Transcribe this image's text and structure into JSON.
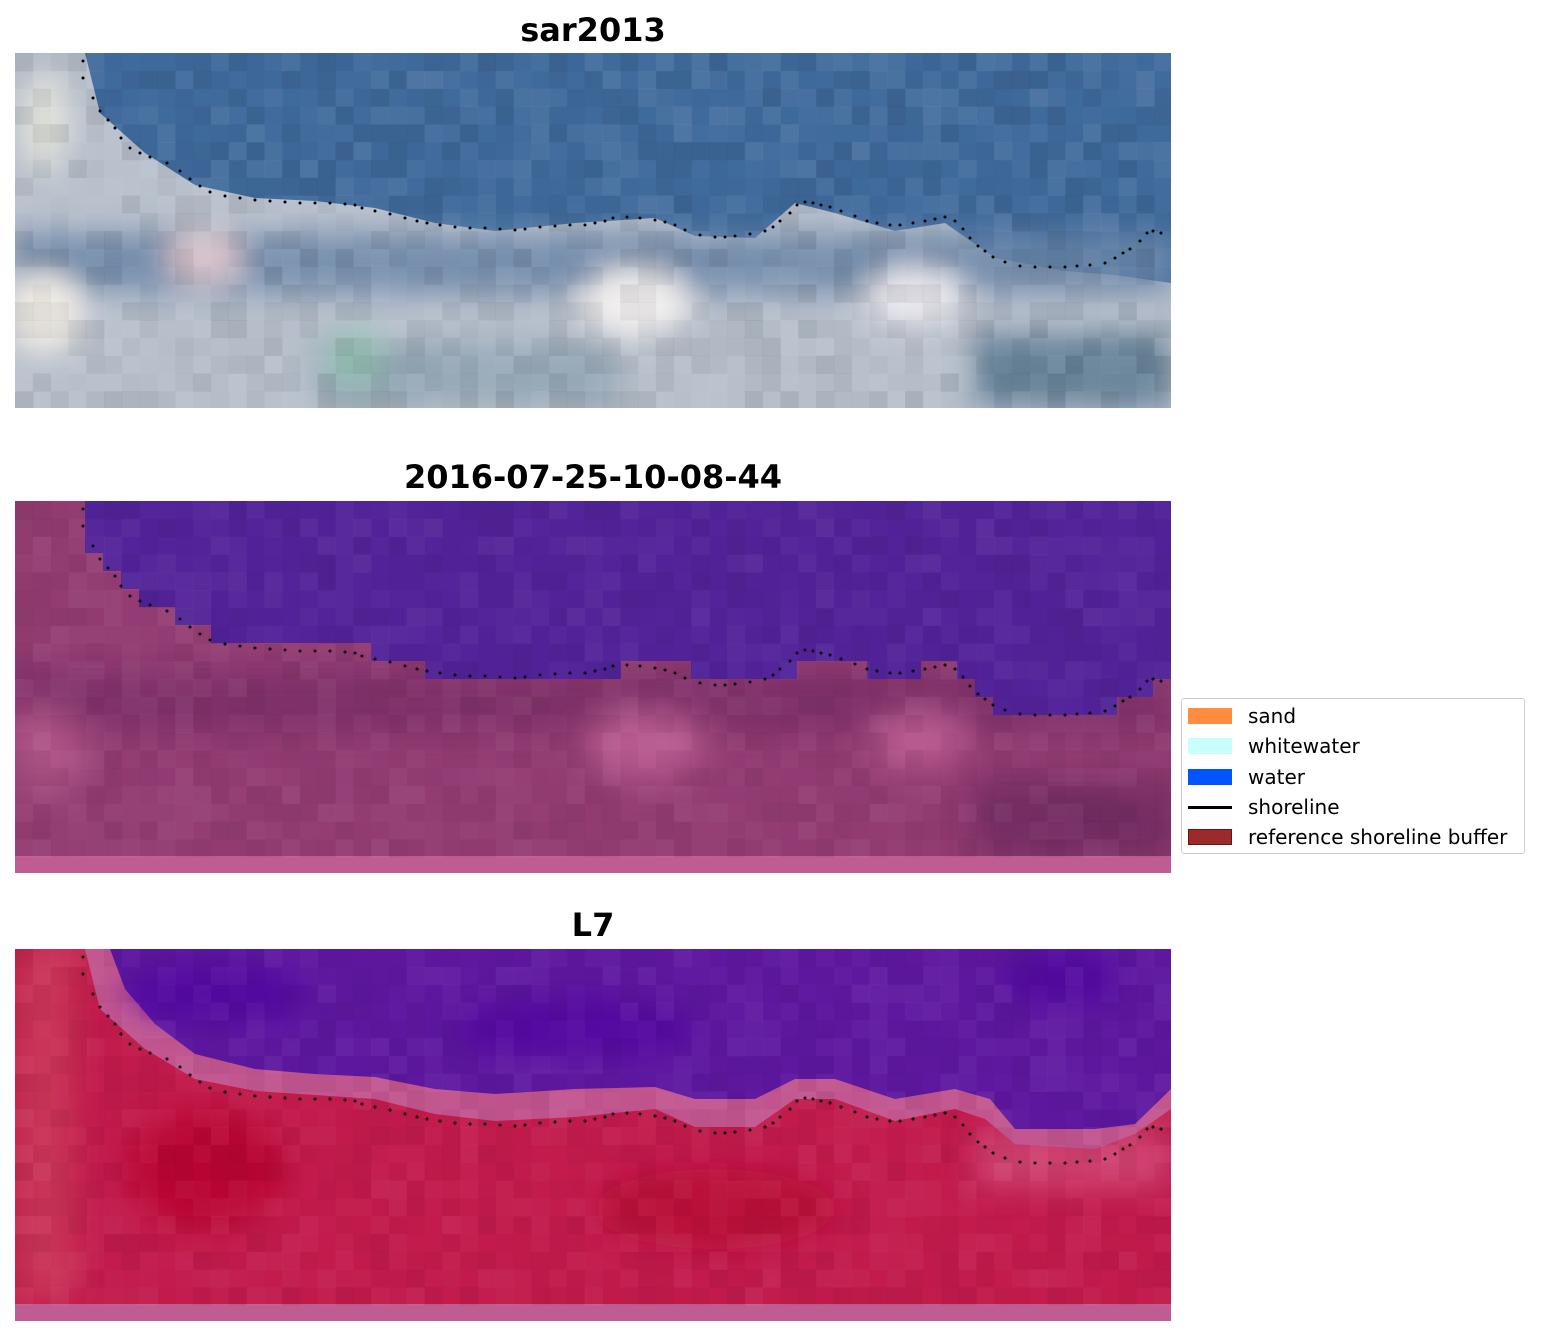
{
  "panels": [
    {
      "title": "sar2013"
    },
    {
      "title": "2016-07-25-10-08-44"
    },
    {
      "title": "L7"
    }
  ],
  "legend": {
    "items": [
      {
        "label": "sand",
        "kind": "patch",
        "color": "#ff8c3f"
      },
      {
        "label": "whitewater",
        "kind": "patch",
        "color": "#c8fffc"
      },
      {
        "label": "water",
        "kind": "patch",
        "color": "#0055ff"
      },
      {
        "label": "shoreline",
        "kind": "line",
        "color": "#000000"
      },
      {
        "label": "reference shoreline buffer",
        "kind": "patch",
        "color": "#9b2a2a"
      }
    ]
  },
  "colors": {
    "sar_water": "#3f6c99",
    "sar_land": "#b8c0cc",
    "class_water": "#522399",
    "class_land": "#9a3f78",
    "l7_water": "#5a1aa0",
    "l7_land": "#c01a48",
    "strip": "#bf5c92"
  }
}
